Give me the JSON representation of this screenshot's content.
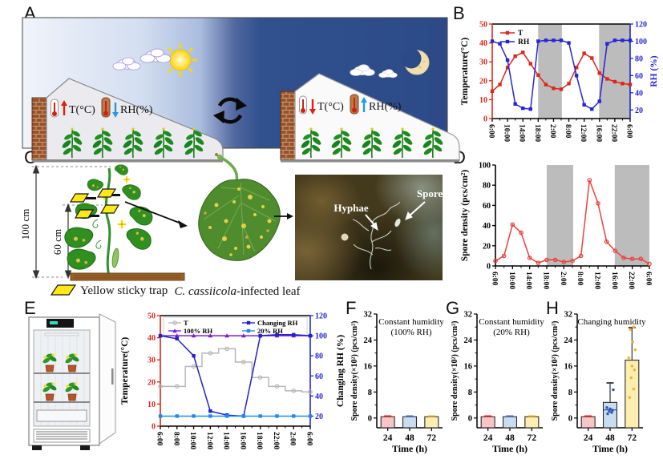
{
  "figure": {
    "panels": {
      "a": "A",
      "b": "B",
      "c": "C",
      "d": "D",
      "e": "E",
      "f": "F",
      "g": "G",
      "h": "H"
    },
    "panel_a": {
      "day": {
        "temp_label": "T(°C)",
        "rh_label": "RH(%)"
      },
      "night": {
        "temp_label": "T(°C)",
        "rh_label": "RH(%)"
      }
    },
    "panel_c": {
      "height_outer": "100 cm",
      "height_inner": "60 cm",
      "trap_legend": "Yellow sticky trap",
      "leaf_caption_italic": "C. cassiicola",
      "leaf_caption_rest": "-infected leaf",
      "micro": {
        "hyphae": "Hyphae",
        "spore": "Spore"
      }
    }
  },
  "chart_data": [
    {
      "id": "b",
      "type": "line",
      "ylabel_left": "Temperature(°C)",
      "ylim_left": [
        0,
        50
      ],
      "yticks_left": [
        0,
        10,
        20,
        30,
        40,
        50
      ],
      "left_color": "#e02418",
      "ylabel_right": "RH (%)",
      "ylim_right": [
        10,
        120
      ],
      "yticks_right": [
        20,
        40,
        60,
        80,
        100,
        120
      ],
      "right_color": "#2525d8",
      "right_label_color": "#2525d8",
      "xticklabels": [
        "6:00",
        "10:00",
        "14:00",
        "18:00",
        "2:00",
        "8:00",
        "12:00",
        "16:00",
        "22:00",
        "6:00"
      ],
      "night_bands": [
        [
          0.333,
          0.505
        ],
        [
          0.775,
          1.0
        ]
      ],
      "legend": "stack",
      "series": [
        {
          "name": "T",
          "color": "#e02418",
          "axis": "left",
          "marker": "square",
          "values": [
            14.5,
            18,
            27,
            33,
            35,
            29,
            23,
            18,
            16,
            15.5,
            18.5,
            27,
            34.5,
            32,
            24,
            21,
            19.5,
            18.5,
            18
          ]
        },
        {
          "name": "RH",
          "color": "#2525d8",
          "axis": "right",
          "marker": "square",
          "values": [
            100,
            97,
            78,
            27,
            22,
            21,
            100,
            101,
            101,
            101,
            98,
            60,
            26,
            21,
            30,
            97,
            101,
            101,
            101
          ]
        }
      ]
    },
    {
      "id": "d",
      "type": "line",
      "frame_top": false,
      "ylabel_left": "Spore density (pcs/cm²)",
      "ylim_left": [
        0,
        100
      ],
      "yticks_left": [
        0,
        20,
        40,
        60,
        80,
        100
      ],
      "left_color": "#000000",
      "xticklabels": [
        "6:00",
        "10:00",
        "14:00",
        "18:00",
        "2:00",
        "8:00",
        "12:00",
        "16:00",
        "22:00",
        "6:00"
      ],
      "night_bands": [
        [
          0.333,
          0.505
        ],
        [
          0.775,
          1.0
        ]
      ],
      "series": [
        {
          "name": "Spore density",
          "color": "#e8423a",
          "axis": "left",
          "marker": "circle-open",
          "values": [
            5,
            10,
            41,
            33,
            8,
            3,
            6,
            6,
            4,
            5,
            10,
            85,
            62,
            24,
            15,
            8,
            7,
            7,
            2
          ]
        }
      ]
    },
    {
      "id": "e",
      "type": "line",
      "ylabel_left": "Temperature(°C)",
      "ylim_left": [
        0,
        50
      ],
      "yticks_left": [
        0,
        10,
        20,
        30,
        40,
        50
      ],
      "left_color": "#e02418",
      "ylabel_right": "Changing RH (%)",
      "ylim_right": [
        10,
        120
      ],
      "yticks_right": [
        20,
        40,
        60,
        80,
        100,
        120
      ],
      "right_color": "#2525d8",
      "right_label_color": "#000000",
      "xticklabels": [
        "6:00",
        "8:00",
        "10:00",
        "12:00",
        "14:00",
        "16:00",
        "18:00",
        "22:00",
        "2:00",
        "6:00"
      ],
      "legend": "grid",
      "series": [
        {
          "name": "T",
          "color": "#b8b8b8",
          "axis": "left",
          "marker": "circle-open",
          "step": true,
          "values": [
            18,
            18,
            27,
            33,
            35,
            29,
            22,
            18,
            16,
            15.5
          ]
        },
        {
          "name": "100% RH",
          "color": "#7a1fd0",
          "axis": "right",
          "marker": "triangle",
          "values": [
            100,
            100,
            100,
            100,
            100,
            100,
            100,
            100,
            100,
            100
          ]
        },
        {
          "name": "Changing RH",
          "color": "#2222cc",
          "axis": "right",
          "marker": "square",
          "values": [
            100,
            97,
            80,
            25,
            21,
            20,
            100,
            101,
            101,
            100
          ]
        },
        {
          "name": "20% RH",
          "color": "#2288ee",
          "axis": "right",
          "marker": "square",
          "values": [
            20,
            20,
            20,
            20,
            20,
            20,
            20,
            20,
            20,
            20
          ]
        }
      ]
    },
    {
      "id": "f",
      "type": "bar",
      "title_lines": [
        "Constant humidity",
        "(100% RH)"
      ],
      "ylabel": "Spore density(×10²) (pcs/cm²)",
      "xlabel": "Time (h)",
      "categories": [
        "24",
        "48",
        "72"
      ],
      "values": [
        0.4,
        0.4,
        0.4
      ],
      "errors": [
        0.2,
        0.2,
        0.2
      ],
      "bar_colors": [
        "#f8c5c7",
        "#c9dcf0",
        "#fdedae"
      ],
      "err_colors": [
        "#e02020",
        "#3a6fd0",
        "#f0a820"
      ],
      "ylim": [
        -3,
        32
      ],
      "yticks": [
        0,
        8,
        16,
        24,
        32
      ]
    },
    {
      "id": "g",
      "type": "bar",
      "title_lines": [
        "Constant humidity",
        "(20% RH)"
      ],
      "ylabel": "Spore density(×10²) (pcs/cm²)",
      "xlabel": "Time (h)",
      "categories": [
        "24",
        "48",
        "72"
      ],
      "values": [
        0.4,
        0.4,
        0.4
      ],
      "errors": [
        0.2,
        0.2,
        0.2
      ],
      "bar_colors": [
        "#f8c5c7",
        "#c9dcf0",
        "#fdedae"
      ],
      "err_colors": [
        "#e02020",
        "#3a6fd0",
        "#f0a820"
      ],
      "ylim": [
        -3,
        32
      ],
      "yticks": [
        0,
        8,
        16,
        24,
        32
      ]
    },
    {
      "id": "h",
      "type": "bar",
      "title_lines": [
        "Changing humidity"
      ],
      "ylabel": "Spore density(×10²) (pcs/cm²)",
      "xlabel": "Time (h)",
      "categories": [
        "24",
        "48",
        "72"
      ],
      "values": [
        0.4,
        4.8,
        17.8
      ],
      "errors": [
        0.2,
        6.0,
        10.0
      ],
      "bar_colors": [
        "#f8c5c7",
        "#c9dcf0",
        "#fdedae"
      ],
      "err_colors": [
        "#e02020",
        "#333333",
        "#333333"
      ],
      "medians": [
        null,
        2.5,
        null
      ],
      "points": [
        [],
        [
          1.3,
          1.7,
          2.1,
          2.4,
          2.8,
          3.2,
          8.7
        ],
        [
          6.3,
          8.9,
          12.4,
          14.8,
          16.0,
          18.5,
          21.0,
          23.4,
          27.2,
          28.0
        ]
      ],
      "point_colors": [
        "#e02020",
        "#2a55b0",
        "#f0b428"
      ],
      "ylim": [
        -3,
        32
      ],
      "yticks": [
        0,
        8,
        16,
        24,
        32
      ]
    }
  ]
}
